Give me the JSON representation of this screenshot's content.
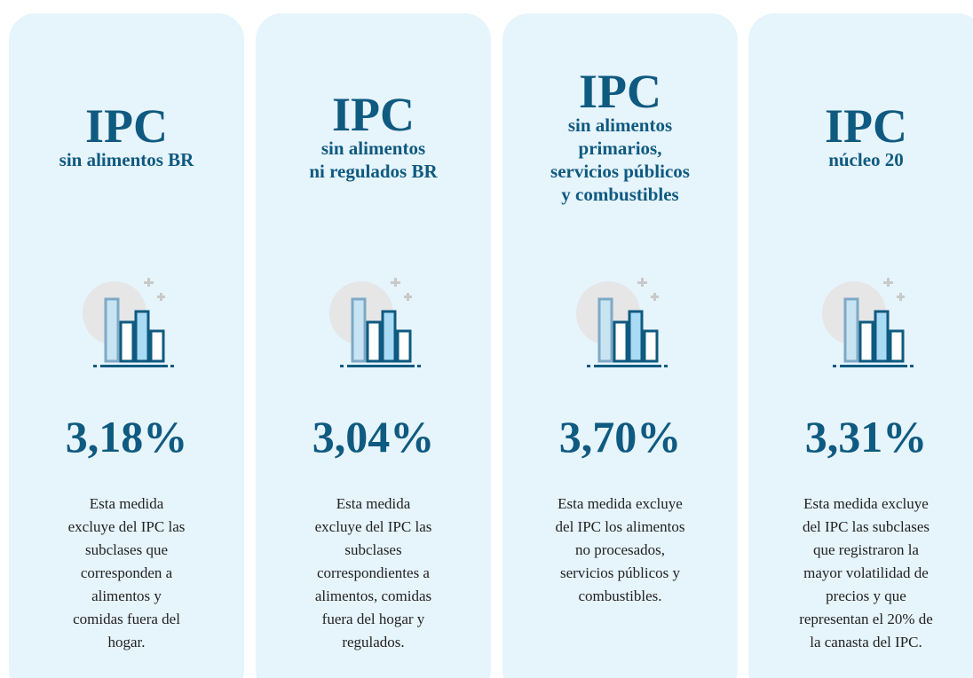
{
  "cards": [
    {
      "title": "IPC",
      "subtitle": [
        "sin alimentos BR"
      ],
      "value": "3,18%",
      "description": [
        "Esta medida",
        "excluye del IPC las",
        "subclases que",
        "corresponden a",
        "alimentos y",
        "comidas fuera del",
        "hogar."
      ]
    },
    {
      "title": "IPC",
      "subtitle": [
        "sin alimentos",
        "ni regulados BR"
      ],
      "value": "3,04%",
      "description": [
        "Esta medida",
        "excluye del IPC las",
        "subclases",
        "correspondientes a",
        "alimentos, comidas",
        "fuera del hogar y",
        "regulados."
      ]
    },
    {
      "title": "IPC",
      "subtitle": [
        "sin alimentos",
        "primarios,",
        "servicios públicos",
        "y combustibles"
      ],
      "value": "3,70%",
      "description": [
        "Esta medida excluye",
        "del IPC los alimentos",
        "no procesados,",
        "servicios públicos y",
        "combustibles."
      ]
    },
    {
      "title": "IPC",
      "subtitle": [
        "núcleo 20"
      ],
      "value": "3,31%",
      "description": [
        "Esta medida excluye",
        "del IPC las subclases",
        "que registraron la",
        "mayor volatilidad de",
        "precios y que",
        "representan el 20% de",
        "la canasta del IPC."
      ]
    }
  ]
}
